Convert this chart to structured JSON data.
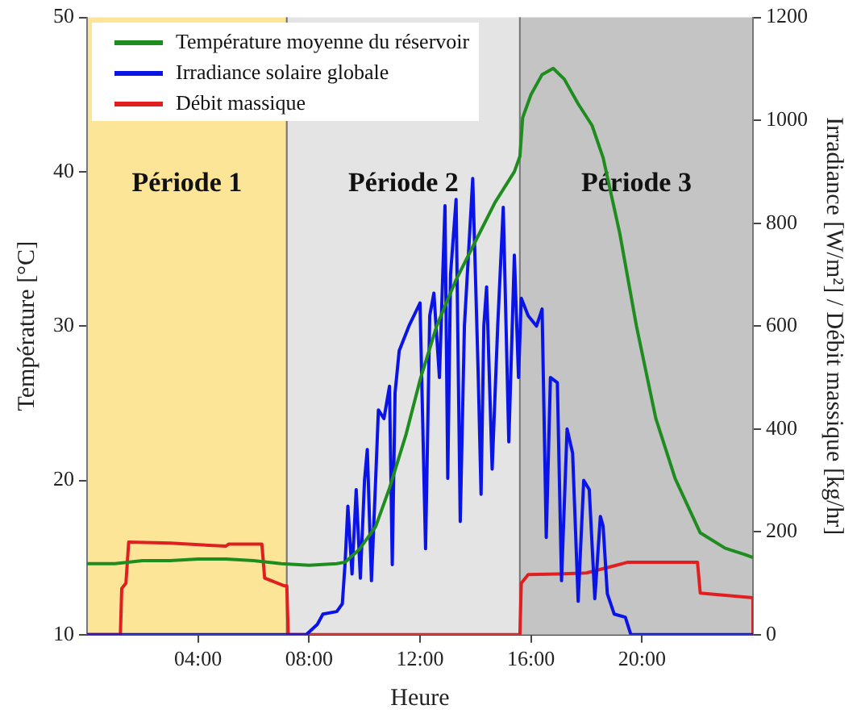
{
  "chart_data": {
    "type": "line",
    "xlabel": "Heure",
    "ylabel": "Température [°C]",
    "y2label": "Irradiance [W/m²] / Débit massique [kg/hr]",
    "xlim": [
      0,
      24
    ],
    "xticks": [
      {
        "value": 4,
        "label": "04:00"
      },
      {
        "value": 8,
        "label": "08:00"
      },
      {
        "value": 12,
        "label": "12:00"
      },
      {
        "value": 16,
        "label": "16:00"
      },
      {
        "value": 20,
        "label": "20:00"
      }
    ],
    "ylim": [
      10,
      50
    ],
    "yticks": [
      10,
      20,
      30,
      40,
      50
    ],
    "y2lim": [
      0,
      1200
    ],
    "y2ticks": [
      0,
      200,
      400,
      600,
      800,
      1000,
      1200
    ],
    "grid": false,
    "legend": "top left",
    "marker": "none",
    "line_style": "solid",
    "bands": [
      {
        "axis": "x",
        "from": 0,
        "to": 7.2,
        "label": "Période 1",
        "color": "#fce597"
      },
      {
        "axis": "x",
        "from": 7.2,
        "to": 15.6,
        "label": "Période 2",
        "color": "#e4e4e4"
      },
      {
        "axis": "x",
        "from": 15.6,
        "to": 24,
        "label": "Période 3",
        "color": "#c4c4c4"
      }
    ],
    "series": [
      {
        "name": "Température moyenne du réservoir",
        "color": "#1e8c1e",
        "x": [
          0,
          1,
          2,
          3,
          4,
          5,
          6,
          7,
          8,
          9,
          9.3,
          9.8,
          10.4,
          10.9,
          11.5,
          12,
          12.6,
          13.3,
          14,
          14.7,
          15.4,
          15.6,
          15.7,
          16,
          16.4,
          16.8,
          17.2,
          17.7,
          18.2,
          18.6,
          19.2,
          19.8,
          20.5,
          21.2,
          22.1,
          23,
          23.7,
          24
        ],
        "values": [
          14.6,
          14.6,
          14.8,
          14.8,
          14.9,
          14.9,
          14.8,
          14.6,
          14.5,
          14.6,
          14.7,
          15.5,
          17,
          19.5,
          23,
          26.5,
          30,
          33,
          35.5,
          38,
          40,
          41,
          43.5,
          45,
          46.3,
          46.7,
          46,
          44.4,
          43,
          40.9,
          36,
          30,
          24,
          20.1,
          16.6,
          15.6,
          15.2,
          15
        ]
      },
      {
        "name": "Irradiance solaire globale",
        "color": "#0a14e6",
        "axis": "y2",
        "x": [
          0,
          7.9,
          8.3,
          8.5,
          9.0,
          9.2,
          9.3,
          9.4,
          9.55,
          9.7,
          9.85,
          10.0,
          10.1,
          10.25,
          10.4,
          10.5,
          10.7,
          10.9,
          11.0,
          11.1,
          11.25,
          11.6,
          12.0,
          12.2,
          12.35,
          12.5,
          12.7,
          12.9,
          13.0,
          13.1,
          13.3,
          13.45,
          13.6,
          13.9,
          14.1,
          14.2,
          14.3,
          14.4,
          14.6,
          14.8,
          15.0,
          15.2,
          15.4,
          15.55,
          15.65,
          15.9,
          16.2,
          16.4,
          16.55,
          16.7,
          16.95,
          17.1,
          17.3,
          17.5,
          17.7,
          17.9,
          18.1,
          18.3,
          18.5,
          18.6,
          18.75,
          19.0,
          19.4,
          19.6,
          24
        ],
        "values": [
          0,
          0,
          20,
          40,
          45,
          60,
          140,
          250,
          118,
          282,
          110,
          300,
          360,
          105,
          300,
          437,
          420,
          483,
          136,
          470,
          552,
          600,
          645,
          167,
          620,
          664,
          500,
          834,
          304,
          700,
          846,
          220,
          600,
          887,
          500,
          273,
          600,
          676,
          322,
          600,
          831,
          375,
          738,
          500,
          654,
          620,
          600,
          633,
          189,
          500,
          490,
          105,
          400,
          353,
          65,
          300,
          282,
          70,
          230,
          211,
          80,
          40,
          34,
          0,
          0
        ]
      },
      {
        "name": "Débit massique",
        "color": "#e02020",
        "axis": "y2",
        "x": [
          0,
          1.2,
          1.25,
          1.4,
          1.5,
          3,
          5,
          5.1,
          6.3,
          6.4,
          7.1,
          7.2,
          7.25,
          15.6,
          15.65,
          15.9,
          17,
          18,
          19.5,
          22,
          22.1,
          24,
          24
        ],
        "values": [
          0,
          0,
          90,
          100,
          180,
          178,
          172,
          176,
          176,
          110,
          95,
          95,
          0,
          0,
          100,
          117,
          118,
          120,
          141,
          141,
          81,
          72,
          0
        ]
      }
    ]
  }
}
